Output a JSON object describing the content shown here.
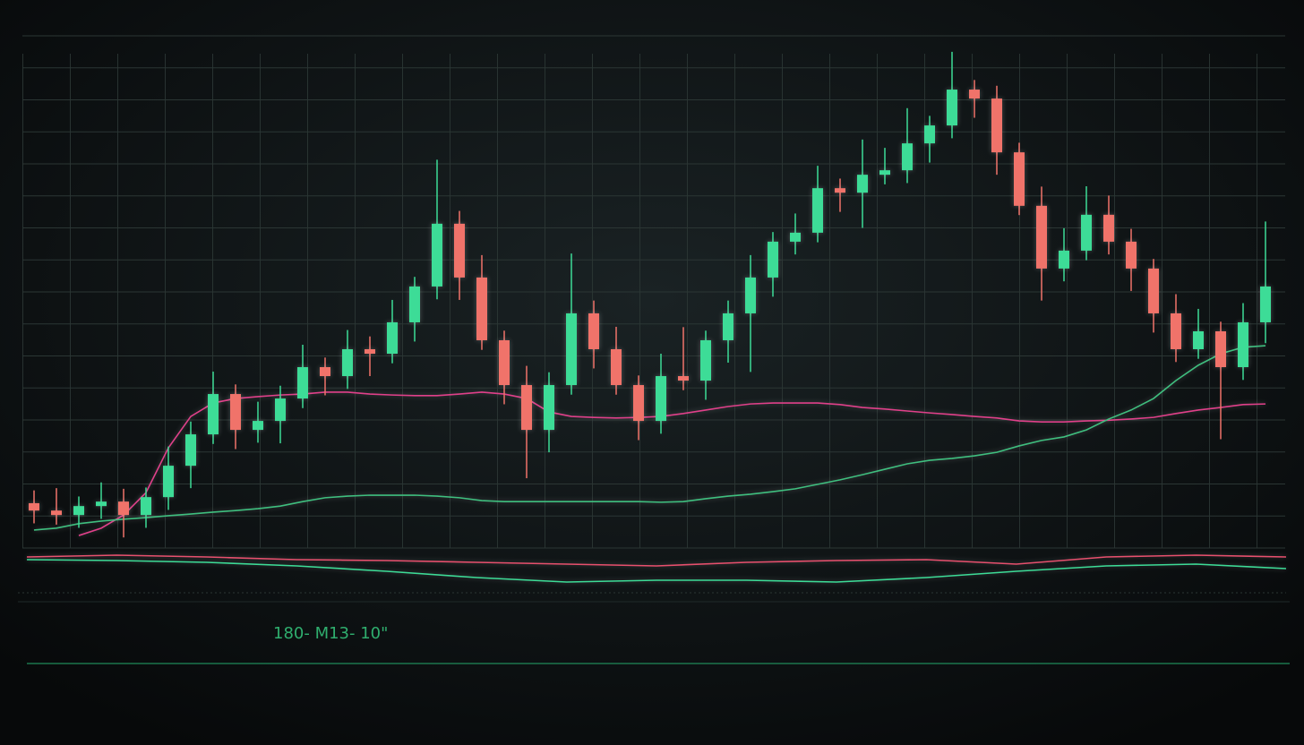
{
  "chart_data": [
    {
      "type": "candlestick",
      "annotation": "180- M13- 10\"",
      "up_color": "#3ddc97",
      "down_color": "#f0736a",
      "ylim": [
        0,
        160
      ],
      "yticks": [
        0,
        10,
        20,
        30,
        40,
        50,
        60,
        70,
        80,
        90,
        100,
        110,
        120,
        130,
        140,
        150,
        160
      ],
      "grid": true,
      "open": [
        14.0,
        11.7,
        10.3,
        13.1,
        14.5,
        10.3,
        15.9,
        25.7,
        35.5,
        48.1,
        36.9,
        39.7,
        46.7,
        56.5,
        53.7,
        62.1,
        60.7,
        70.5,
        81.7,
        101.3,
        84.5,
        64.9,
        50.9,
        36.9,
        50.9,
        73.3,
        62.1,
        50.9,
        39.7,
        53.7,
        52.3,
        64.9,
        73.3,
        84.5,
        95.7,
        98.5,
        112.4,
        111.0,
        116.6,
        118.0,
        126.4,
        132.0,
        143.2,
        140.4,
        123.6,
        106.9,
        87.3,
        92.9,
        104.1,
        95.7,
        87.3,
        73.3,
        62.1,
        67.7,
        56.5,
        70.5
      ],
      "high": [
        18.0,
        18.7,
        16.1,
        20.5,
        18.5,
        18.9,
        31.7,
        39.5,
        55.1,
        51.1,
        45.7,
        50.7,
        63.5,
        59.5,
        68.1,
        66.1,
        77.5,
        84.7,
        121.3,
        105.3,
        91.5,
        67.9,
        56.9,
        54.9,
        92.0,
        77.3,
        69.1,
        53.9,
        60.7,
        69.0,
        67.9,
        77.3,
        91.5,
        98.7,
        104.5,
        119.4,
        115.4,
        127.6,
        125.0,
        137.4,
        135.0,
        155.0,
        146.2,
        144.4,
        126.6,
        112.9,
        99.9,
        113.0,
        110.1,
        99.7,
        90.3,
        79.3,
        74.7,
        70.7,
        76.5,
        102.0
      ],
      "low": [
        7.7,
        7.3,
        6.3,
        9.1,
        3.3,
        6.3,
        11.9,
        18.7,
        32.5,
        30.9,
        32.9,
        32.7,
        43.7,
        47.7,
        49.7,
        53.7,
        57.7,
        64.5,
        77.7,
        77.5,
        61.9,
        44.9,
        21.8,
        29.9,
        47.9,
        56.1,
        47.9,
        33.7,
        35.7,
        49.3,
        46.3,
        57.9,
        55.0,
        78.5,
        91.7,
        95.5,
        105.0,
        100.0,
        113.6,
        114.0,
        120.4,
        128.0,
        134.4,
        116.6,
        104.0,
        77.3,
        83.3,
        89.9,
        91.7,
        80.3,
        67.3,
        58.1,
        59.1,
        34.0,
        52.5,
        64.0
      ],
      "close": [
        11.7,
        10.3,
        13.1,
        14.5,
        10.3,
        15.9,
        25.7,
        35.5,
        48.1,
        36.9,
        39.7,
        46.7,
        56.5,
        53.7,
        62.1,
        60.7,
        70.5,
        81.7,
        101.3,
        84.5,
        64.9,
        50.9,
        36.9,
        50.9,
        73.3,
        62.1,
        50.9,
        39.7,
        53.7,
        52.3,
        64.9,
        73.3,
        84.5,
        95.7,
        98.5,
        112.4,
        111.0,
        116.6,
        118.0,
        126.4,
        132.0,
        143.2,
        140.4,
        123.6,
        106.9,
        87.3,
        92.9,
        104.1,
        95.7,
        87.3,
        73.3,
        62.1,
        67.7,
        56.5,
        70.5,
        81.7
      ],
      "lines": [
        {
          "color": "#e0408a",
          "values": [
            null,
            null,
            3.9,
            6.2,
            10.3,
            17.3,
            31.3,
            41.1,
            45.3,
            46.7,
            47.3,
            47.8,
            48.1,
            48.7,
            48.7,
            48.1,
            47.8,
            47.6,
            47.6,
            48.1,
            48.7,
            48.1,
            46.7,
            42.5,
            41.1,
            40.8,
            40.6,
            40.8,
            41.1,
            42.0,
            43.1,
            44.2,
            45.0,
            45.3,
            45.3,
            45.3,
            44.8,
            43.9,
            43.4,
            42.8,
            42.2,
            41.7,
            41.1,
            40.6,
            39.7,
            39.4,
            39.4,
            39.7,
            39.9,
            40.3,
            40.8,
            42.0,
            43.1,
            43.9,
            44.8,
            45.0
          ]
        },
        {
          "color": "#3fbf7f",
          "values": [
            5.6,
            6.2,
            7.6,
            8.4,
            9.0,
            9.5,
            10.1,
            10.6,
            11.2,
            11.7,
            12.3,
            13.1,
            14.5,
            15.7,
            16.2,
            16.5,
            16.5,
            16.5,
            16.2,
            15.7,
            14.8,
            14.5,
            14.5,
            14.5,
            14.5,
            14.5,
            14.5,
            14.5,
            14.3,
            14.5,
            15.4,
            16.2,
            16.8,
            17.6,
            18.5,
            19.9,
            21.3,
            22.9,
            24.6,
            26.3,
            27.4,
            28.0,
            28.8,
            29.9,
            31.9,
            33.6,
            34.7,
            36.9,
            40.3,
            43.1,
            46.7,
            52.3,
            57.1,
            60.7,
            62.7,
            63.2
          ]
        }
      ]
    },
    {
      "type": "line",
      "ylim": [
        0,
        10
      ],
      "series": [
        {
          "color": "#e8506e",
          "values": [
            8.0,
            8.4,
            8.0,
            7.4,
            7.2,
            6.8,
            6.4,
            6.0,
            6.8,
            7.2,
            7.4,
            6.4,
            8.0,
            8.4,
            8.0
          ]
        },
        {
          "color": "#3ddc97",
          "values": [
            7.4,
            7.2,
            6.8,
            6.0,
            4.8,
            3.4,
            2.4,
            2.8,
            2.8,
            2.4,
            3.4,
            4.8,
            6.0,
            6.4,
            5.4
          ]
        }
      ]
    }
  ]
}
